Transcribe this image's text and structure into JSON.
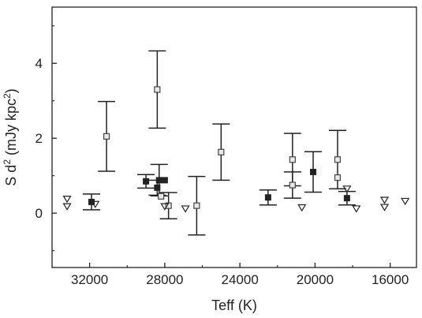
{
  "chart_data": {
    "type": "scatter",
    "xlabel": "Teff (K)",
    "ylabel_parts": [
      "S d",
      "2",
      " (mJy kpc",
      "2",
      ")"
    ],
    "x_reversed": true,
    "xlim": [
      34000,
      14600
    ],
    "ylim": [
      -1.45,
      5.5
    ],
    "x_ticks": [
      32000,
      28000,
      24000,
      20000,
      16000
    ],
    "x_tick_labels": [
      "32000",
      "28000",
      "24000",
      "20000",
      "16000"
    ],
    "y_ticks": [
      0,
      2,
      4
    ],
    "y_tick_labels": [
      "0",
      "2",
      "4"
    ],
    "grid": false,
    "series": [
      {
        "marker": "filled-square",
        "color": "#222222",
        "points": [
          {
            "x": 31900,
            "y": 0.3,
            "err": 0.21
          },
          {
            "x": 29000,
            "y": 0.85,
            "err": 0.18
          },
          {
            "x": 28400,
            "y": 0.68,
            "err": 0.2
          },
          {
            "x": 28300,
            "y": 0.88,
            "err": 0.42
          },
          {
            "x": 28000,
            "y": 0.88,
            "err": 0.0
          },
          {
            "x": 22500,
            "y": 0.42,
            "err": 0.2
          },
          {
            "x": 20100,
            "y": 1.1,
            "err": 0.54
          },
          {
            "x": 18300,
            "y": 0.4,
            "err": 0.18
          }
        ]
      },
      {
        "marker": "open-square",
        "color": "#222222",
        "points": [
          {
            "x": 31100,
            "y": 2.05,
            "err": 0.93
          },
          {
            "x": 28400,
            "y": 3.3,
            "err": 1.03
          },
          {
            "x": 28200,
            "y": 0.45,
            "err": 0.0
          },
          {
            "x": 27800,
            "y": 0.2,
            "err": 0.35
          },
          {
            "x": 26300,
            "y": 0.2,
            "err": 0.78
          },
          {
            "x": 25000,
            "y": 1.63,
            "err": 0.75
          },
          {
            "x": 21200,
            "y": 1.43,
            "err": 0.7
          },
          {
            "x": 21200,
            "y": 0.75,
            "err": 0.35
          },
          {
            "x": 18800,
            "y": 1.43,
            "err": 0.78
          },
          {
            "x": 18800,
            "y": 0.95,
            "err": 0.0
          }
        ]
      },
      {
        "marker": "open-triangle-down",
        "color": "#222222",
        "points": [
          {
            "x": 33200,
            "y": 0.38
          },
          {
            "x": 33200,
            "y": 0.18
          },
          {
            "x": 31700,
            "y": 0.24
          },
          {
            "x": 28000,
            "y": 0.18
          },
          {
            "x": 26900,
            "y": 0.12
          },
          {
            "x": 20700,
            "y": 0.15
          },
          {
            "x": 18300,
            "y": 0.65
          },
          {
            "x": 17800,
            "y": 0.12
          },
          {
            "x": 16300,
            "y": 0.35
          },
          {
            "x": 16300,
            "y": 0.16
          },
          {
            "x": 15200,
            "y": 0.32
          }
        ]
      }
    ]
  }
}
